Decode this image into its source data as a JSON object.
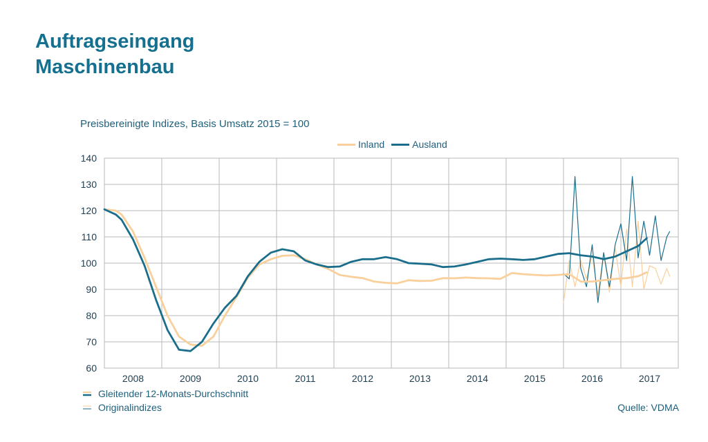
{
  "header": {
    "title_line1": "Auftragseingang",
    "title_line2": "Maschinenbau"
  },
  "footer": {
    "note_smoothed": "Gleitender 12-Monats-Durchschnitt",
    "note_original": "Originalindizes",
    "source": "Quelle: VDMA"
  },
  "colors": {
    "inland": "#f9cf9c",
    "ausland": "#1a6e8c",
    "grid": "#b9b9b9",
    "title": "#15708f"
  },
  "chart_data": {
    "type": "line",
    "subtitle": "Preisbereinigte Indizes, Basis Umsatz 2015 = 100",
    "xlabel": "",
    "ylabel": "",
    "ylim": [
      60,
      140
    ],
    "yticks": [
      60,
      70,
      80,
      90,
      100,
      110,
      120,
      130,
      140
    ],
    "xlim": [
      2007.5,
      2017.5
    ],
    "year_labels": [
      "2008",
      "2009",
      "2010",
      "2011",
      "2012",
      "2013",
      "2014",
      "2015",
      "2016",
      "2017"
    ],
    "grid": true,
    "legend_position": "top-center",
    "legend": [
      "Inland",
      "Ausland"
    ],
    "series": [
      {
        "name": "Inland",
        "style": "smoothed",
        "x": [
          2007.5,
          2007.7,
          2007.8,
          2008.0,
          2008.2,
          2008.4,
          2008.6,
          2008.8,
          2009.0,
          2009.2,
          2009.4,
          2009.6,
          2009.8,
          2010.0,
          2010.2,
          2010.4,
          2010.6,
          2010.8,
          2011.0,
          2011.2,
          2011.4,
          2011.6,
          2011.8,
          2012.0,
          2012.2,
          2012.4,
          2012.6,
          2012.8,
          2013.0,
          2013.2,
          2013.4,
          2013.6,
          2013.8,
          2014.0,
          2014.2,
          2014.4,
          2014.6,
          2014.8,
          2015.0,
          2015.2,
          2015.4,
          2015.6,
          2015.8,
          2016.0,
          2016.2,
          2016.4,
          2016.6,
          2016.8,
          2016.95
        ],
        "y": [
          120.5,
          120,
          118.5,
          112,
          102,
          91,
          80,
          72,
          69,
          68.5,
          72,
          80,
          87,
          94.5,
          99.5,
          101.5,
          102.8,
          103,
          101.5,
          99.5,
          97.8,
          95.5,
          94.8,
          94.3,
          93,
          92.5,
          92.3,
          93.5,
          93.2,
          93.3,
          94.3,
          94.2,
          94.5,
          94.3,
          94.2,
          94,
          96.2,
          95.8,
          95.5,
          95.3,
          95.5,
          95.8,
          93,
          93,
          93.5,
          94,
          94.3,
          95,
          96.5
        ]
      },
      {
        "name": "Ausland",
        "style": "smoothed",
        "x": [
          2007.5,
          2007.7,
          2007.8,
          2008.0,
          2008.2,
          2008.4,
          2008.6,
          2008.8,
          2009.0,
          2009.2,
          2009.4,
          2009.6,
          2009.8,
          2010.0,
          2010.2,
          2010.4,
          2010.6,
          2010.8,
          2011.0,
          2011.2,
          2011.4,
          2011.6,
          2011.8,
          2012.0,
          2012.2,
          2012.4,
          2012.6,
          2012.8,
          2013.0,
          2013.2,
          2013.4,
          2013.6,
          2013.8,
          2014.0,
          2014.2,
          2014.4,
          2014.6,
          2014.8,
          2015.0,
          2015.2,
          2015.4,
          2015.6,
          2015.8,
          2016.0,
          2016.2,
          2016.4,
          2016.6,
          2016.8,
          2016.95
        ],
        "y": [
          120.5,
          118.5,
          116.5,
          109,
          99,
          86,
          74.5,
          67,
          66.5,
          70,
          77,
          83,
          87.5,
          95,
          100.5,
          104,
          105.3,
          104.5,
          101,
          99.5,
          98.5,
          98.7,
          100.5,
          101.5,
          101.5,
          102.3,
          101.5,
          100,
          99.8,
          99.5,
          98.5,
          98.7,
          99.5,
          100.5,
          101.5,
          101.7,
          101.5,
          101.2,
          101.5,
          102.5,
          103.5,
          103.8,
          103,
          102.5,
          101.5,
          102.5,
          104.5,
          106.5,
          109.5
        ]
      },
      {
        "name": "Inland",
        "style": "original",
        "x": [
          2015.5,
          2015.6,
          2015.7,
          2015.8,
          2015.9,
          2016.0,
          2016.1,
          2016.2,
          2016.3,
          2016.4,
          2016.5,
          2016.6,
          2016.7,
          2016.8,
          2016.9,
          2017.0,
          2017.1,
          2017.2,
          2017.3,
          2017.35
        ],
        "y": [
          85,
          101,
          91,
          101,
          94,
          103,
          88,
          104,
          89,
          106,
          91,
          113,
          91,
          116,
          90,
          99,
          98,
          92,
          98,
          95
        ]
      },
      {
        "name": "Ausland",
        "style": "original",
        "x": [
          2015.5,
          2015.6,
          2015.7,
          2015.8,
          2015.9,
          2016.0,
          2016.1,
          2016.2,
          2016.3,
          2016.4,
          2016.5,
          2016.6,
          2016.7,
          2016.8,
          2016.9,
          2017.0,
          2017.1,
          2017.2,
          2017.3,
          2017.35
        ],
        "y": [
          96,
          94,
          133,
          98,
          91,
          107,
          85,
          104,
          91,
          107,
          115,
          101,
          133,
          102,
          116,
          103,
          118,
          101,
          110,
          112
        ]
      }
    ]
  }
}
